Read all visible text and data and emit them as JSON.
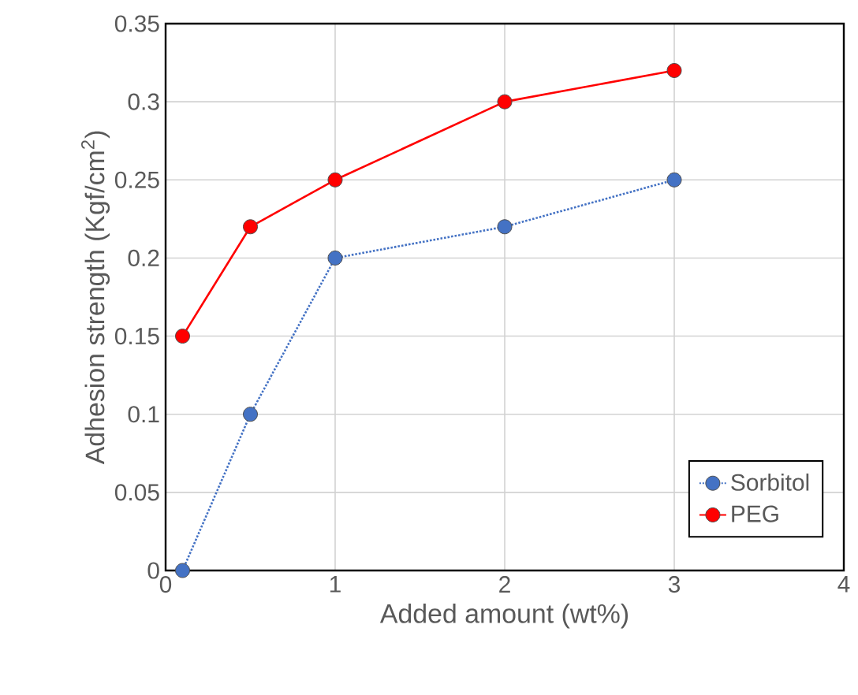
{
  "chart_data": {
    "type": "line",
    "xlabel": "Added amount (wt%)",
    "ylabel": "Adhesion strength (Kgf/cm$^{2}$)",
    "x": [
      0.1,
      0.5,
      1,
      2,
      3
    ],
    "series": [
      {
        "name": "Sorbitol",
        "color": "#4472c4",
        "values": [
          0,
          0.1,
          0.2,
          0.22,
          0.25
        ],
        "line_style": "dotted"
      },
      {
        "name": "PEG",
        "color": "#ff0000",
        "values": [
          0.15,
          0.22,
          0.25,
          0.3,
          0.32
        ],
        "line_style": "solid"
      }
    ],
    "xlim": [
      0,
      4
    ],
    "xticks": [
      0,
      1,
      2,
      3,
      4
    ],
    "ylim": [
      0,
      0.35
    ],
    "yticks": [
      0,
      0.05,
      0.1,
      0.15,
      0.2,
      0.25,
      0.3,
      0.35
    ],
    "grid": true,
    "legend": "bottom right",
    "marker": "circle"
  }
}
